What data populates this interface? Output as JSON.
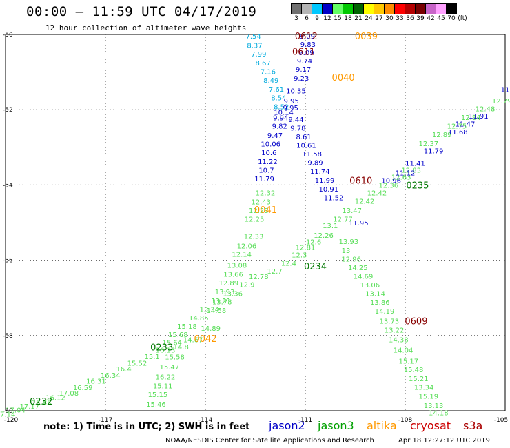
{
  "header": {
    "title": "00:00 – 11:59 UTC 04/17/2019",
    "subtitle": "12 hour collection of altimeter wave heights"
  },
  "colorbar": {
    "unit": "(ft)",
    "bins": [
      {
        "label": "3",
        "color": "#707070"
      },
      {
        "label": "6",
        "color": "#b4b4b4"
      },
      {
        "label": "9",
        "color": "#00c8ff"
      },
      {
        "label": "12",
        "color": "#0000c8"
      },
      {
        "label": "15",
        "color": "#64ff64"
      },
      {
        "label": "18",
        "color": "#00c800"
      },
      {
        "label": "21",
        "color": "#006400"
      },
      {
        "label": "24",
        "color": "#ffff00"
      },
      {
        "label": "27",
        "color": "#ffc800"
      },
      {
        "label": "30",
        "color": "#ff8c00"
      },
      {
        "label": "33",
        "color": "#ff0000"
      },
      {
        "label": "36",
        "color": "#b40000"
      },
      {
        "label": "39",
        "color": "#780000"
      },
      {
        "label": "42",
        "color": "#c864c8"
      },
      {
        "label": "45",
        "color": "#ffa0ff"
      },
      {
        "label": "70",
        "color": "#000000"
      }
    ]
  },
  "footer": {
    "note": "note: 1) Time is in UTC; 2) SWH is in feet",
    "credit": "NOAA/NESDIS Center for Satellite Applications and Research",
    "timestamp": "Apr 18 12:27:12 UTC 2019",
    "satellites": [
      {
        "name": "jason2",
        "color": "#0000c8"
      },
      {
        "name": "jason3",
        "color": "#00a000"
      },
      {
        "name": "altika",
        "color": "#ff9900"
      },
      {
        "name": "cryosat",
        "color": "#cc0000"
      },
      {
        "name": "s3a",
        "color": "#aa0000"
      }
    ]
  },
  "chart_data": {
    "type": "scatter",
    "title": "00:00 – 11:59 UTC 04/17/2019",
    "subtitle": "12 hour collection of altimeter wave heights",
    "xlabel": "",
    "ylabel": "",
    "xlim": [
      -120,
      -105
    ],
    "ylim": [
      -60,
      -50
    ],
    "xticks": [
      "-120",
      "-117",
      "-114",
      "-111",
      "-108",
      "-105"
    ],
    "yticks": [
      "-50",
      "-52",
      "-54",
      "-56",
      "-58",
      "-60"
    ],
    "grid": true,
    "point_colors": {
      "light_blue": "#00aadd",
      "dark_blue": "#0000c8",
      "light_green": "#55dd55",
      "dark_green": "#007700",
      "altika": "#ff9900",
      "cryosat": "#880000"
    },
    "time_labels": [
      {
        "text": "0612",
        "color": "cryosat",
        "lon": -110.97,
        "lat": -50.04
      },
      {
        "text": "0039",
        "color": "altika",
        "lon": -109.17,
        "lat": -50.04
      },
      {
        "text": "0611",
        "color": "cryosat",
        "lon": -111.05,
        "lat": -50.45
      },
      {
        "text": "0040",
        "color": "altika",
        "lon": -109.86,
        "lat": -51.14
      },
      {
        "text": "0610",
        "color": "cryosat",
        "lon": -109.33,
        "lat": -53.87
      },
      {
        "text": "0235",
        "color": "dark_green",
        "lon": -107.63,
        "lat": -54.0
      },
      {
        "text": "0041",
        "color": "altika",
        "lon": -112.19,
        "lat": -54.65
      },
      {
        "text": "0234",
        "color": "dark_green",
        "lon": -110.7,
        "lat": -56.15
      },
      {
        "text": "0609",
        "color": "cryosat",
        "lon": -107.67,
        "lat": -57.61
      },
      {
        "text": "0042",
        "color": "altika",
        "lon": -114.0,
        "lat": -58.08
      },
      {
        "text": "0233",
        "color": "dark_green",
        "lon": -115.31,
        "lat": -58.31
      },
      {
        "text": "0232",
        "color": "dark_green",
        "lon": -118.93,
        "lat": -59.74
      }
    ],
    "tracks": [
      {
        "name": "track-light-blue-north",
        "color": "light_blue",
        "points": [
          {
            "lon": -112.56,
            "lat": -50.04,
            "swh": 7.54
          },
          {
            "lon": -112.52,
            "lat": -50.28,
            "swh": 8.37
          },
          {
            "lon": -112.4,
            "lat": -50.51,
            "swh": 7.99
          },
          {
            "lon": -112.27,
            "lat": -50.75,
            "swh": 8.67
          },
          {
            "lon": -112.12,
            "lat": -50.98,
            "swh": 7.16
          },
          {
            "lon": -112.03,
            "lat": -51.21,
            "swh": 8.49
          },
          {
            "lon": -111.87,
            "lat": -51.45,
            "swh": 7.61
          },
          {
            "lon": -111.8,
            "lat": -51.68,
            "swh": 8.54
          },
          {
            "lon": -111.72,
            "lat": -51.91,
            "swh": 8.52
          }
        ]
      },
      {
        "name": "track-dark-blue-west",
        "color": "dark_blue",
        "points": [
          {
            "lon": -111.65,
            "lat": -52.06,
            "swh": 10.14
          },
          {
            "lon": -111.74,
            "lat": -52.21,
            "swh": 9.94
          },
          {
            "lon": -111.77,
            "lat": -52.43,
            "swh": 9.82
          },
          {
            "lon": -111.91,
            "lat": -52.67,
            "swh": 9.47
          },
          {
            "lon": -112.04,
            "lat": -52.9,
            "swh": 10.06
          },
          {
            "lon": -112.09,
            "lat": -53.13,
            "swh": 10.6
          },
          {
            "lon": -112.13,
            "lat": -53.37,
            "swh": 11.22
          },
          {
            "lon": -112.17,
            "lat": -53.6,
            "swh": 10.7
          },
          {
            "lon": -112.23,
            "lat": -53.83,
            "swh": 11.79
          }
        ]
      },
      {
        "name": "track-dark-blue-center",
        "color": "dark_blue",
        "points": [
          {
            "lon": -110.94,
            "lat": -50.04,
            "swh": 9.09
          },
          {
            "lon": -110.92,
            "lat": -50.26,
            "swh": 9.83
          },
          {
            "lon": -110.97,
            "lat": -50.48,
            "swh": 9.09
          },
          {
            "lon": -111.02,
            "lat": -50.7,
            "swh": 9.74
          },
          {
            "lon": -111.06,
            "lat": -50.92,
            "swh": 9.17
          },
          {
            "lon": -111.12,
            "lat": -51.15,
            "swh": 9.23
          },
          {
            "lon": -111.28,
            "lat": -51.49,
            "swh": 10.35
          },
          {
            "lon": -111.42,
            "lat": -51.76,
            "swh": 9.95
          },
          {
            "lon": -111.44,
            "lat": -51.94,
            "swh": 9.95
          },
          {
            "lon": -111.28,
            "lat": -52.25,
            "swh": 9.44
          },
          {
            "lon": -111.22,
            "lat": -52.48,
            "swh": 9.78
          },
          {
            "lon": -111.05,
            "lat": -52.71,
            "swh": 8.61
          },
          {
            "lon": -110.97,
            "lat": -52.94,
            "swh": 10.61
          },
          {
            "lon": -110.8,
            "lat": -53.17,
            "swh": 11.58
          },
          {
            "lon": -110.7,
            "lat": -53.4,
            "swh": 9.89
          },
          {
            "lon": -110.56,
            "lat": -53.63,
            "swh": 11.74
          },
          {
            "lon": -110.42,
            "lat": -53.86,
            "swh": 11.99
          },
          {
            "lon": -110.3,
            "lat": -54.1,
            "swh": 10.91
          },
          {
            "lon": -110.15,
            "lat": -54.33,
            "swh": 11.52
          }
        ]
      },
      {
        "name": "track-dark-blue-south",
        "color": "dark_blue",
        "points": [
          {
            "lon": -109.4,
            "lat": -55.0,
            "swh": 11.95
          }
        ]
      },
      {
        "name": "track-light-green-west",
        "color": "light_green",
        "points": [
          {
            "lon": -112.2,
            "lat": -54.2,
            "swh": 12.32
          },
          {
            "lon": -112.33,
            "lat": -54.44,
            "swh": 12.43
          },
          {
            "lon": -112.4,
            "lat": -54.67,
            "swh": 12.28
          },
          {
            "lon": -112.53,
            "lat": -54.9,
            "swh": 12.25
          },
          {
            "lon": -112.55,
            "lat": -55.36,
            "swh": 12.33
          },
          {
            "lon": -112.76,
            "lat": -55.61,
            "swh": 12.06
          },
          {
            "lon": -112.91,
            "lat": -55.83,
            "swh": 12.14
          },
          {
            "lon": -113.05,
            "lat": -56.13,
            "swh": 13.08
          },
          {
            "lon": -113.16,
            "lat": -56.36,
            "swh": 13.66
          },
          {
            "lon": -113.3,
            "lat": -56.59,
            "swh": 12.89
          },
          {
            "lon": -113.42,
            "lat": -56.83,
            "swh": 13.93
          },
          {
            "lon": -113.53,
            "lat": -57.07,
            "swh": 13.21
          },
          {
            "lon": -113.67,
            "lat": -57.33,
            "swh": 14.58
          },
          {
            "lon": -113.84,
            "lat": -57.8,
            "swh": 14.89
          },
          {
            "lon": -114.37,
            "lat": -58.1,
            "swh": 14.67
          },
          {
            "lon": -114.73,
            "lat": -58.3,
            "swh": 14.8
          },
          {
            "lon": -114.92,
            "lat": -58.56,
            "swh": 15.58
          },
          {
            "lon": -115.08,
            "lat": -58.83,
            "swh": 15.47
          },
          {
            "lon": -115.2,
            "lat": -59.09,
            "swh": 16.22
          },
          {
            "lon": -115.28,
            "lat": -59.33,
            "swh": 15.11
          },
          {
            "lon": -115.43,
            "lat": -59.56,
            "swh": 15.15
          },
          {
            "lon": -115.48,
            "lat": -59.82,
            "swh": 15.46
          }
        ]
      },
      {
        "name": "track-light-green-northeast",
        "color": "light_green",
        "points": [
          {
            "lon": -105.1,
            "lat": -51.76,
            "swh": 12.79
          },
          {
            "lon": -105.6,
            "lat": -51.97,
            "swh": 12.48
          },
          {
            "lon": -106.03,
            "lat": -52.2,
            "swh": 12.84
          },
          {
            "lon": -106.45,
            "lat": -52.43,
            "swh": 12.75
          },
          {
            "lon": -106.9,
            "lat": -52.66,
            "swh": 12.89
          },
          {
            "lon": -107.3,
            "lat": -52.89,
            "swh": 12.37
          },
          {
            "lon": -107.82,
            "lat": -53.6,
            "swh": 12.83
          },
          {
            "lon": -108.12,
            "lat": -53.78,
            "swh": 12.63
          },
          {
            "lon": -108.5,
            "lat": -54.0,
            "swh": 12.36
          },
          {
            "lon": -108.85,
            "lat": -54.2,
            "swh": 12.42
          },
          {
            "lon": -109.22,
            "lat": -54.42,
            "swh": 12.42
          },
          {
            "lon": -109.6,
            "lat": -54.67,
            "swh": 13.47
          },
          {
            "lon": -109.87,
            "lat": -54.9,
            "swh": 12.77
          },
          {
            "lon": -110.25,
            "lat": -55.07,
            "swh": 13.1
          },
          {
            "lon": -110.45,
            "lat": -55.33,
            "swh": 12.26
          },
          {
            "lon": -110.75,
            "lat": -55.5,
            "swh": 12.6
          },
          {
            "lon": -111.0,
            "lat": -55.65,
            "swh": 12.81
          },
          {
            "lon": -111.18,
            "lat": -55.85,
            "swh": 12.3
          },
          {
            "lon": -111.5,
            "lat": -56.07,
            "swh": 12.4
          },
          {
            "lon": -111.92,
            "lat": -56.28,
            "swh": 12.7
          },
          {
            "lon": -112.4,
            "lat": -56.43,
            "swh": 12.78
          },
          {
            "lon": -112.75,
            "lat": -56.64,
            "swh": 12.9
          },
          {
            "lon": -113.18,
            "lat": -56.88,
            "swh": 13.36
          },
          {
            "lon": -113.5,
            "lat": -57.1,
            "swh": 13.78
          },
          {
            "lon": -113.88,
            "lat": -57.3,
            "swh": 13.34
          },
          {
            "lon": -114.2,
            "lat": -57.53,
            "swh": 14.85
          },
          {
            "lon": -114.55,
            "lat": -57.75,
            "swh": 15.18
          },
          {
            "lon": -114.82,
            "lat": -57.97,
            "swh": 15.68
          },
          {
            "lon": -115.0,
            "lat": -58.18,
            "swh": 15.64
          },
          {
            "lon": -115.2,
            "lat": -58.38,
            "swh": 16.13
          },
          {
            "lon": -115.6,
            "lat": -58.55,
            "swh": 15.1
          },
          {
            "lon": -116.05,
            "lat": -58.73,
            "swh": 15.52
          },
          {
            "lon": -116.45,
            "lat": -58.88,
            "swh": 16.4
          },
          {
            "lon": -116.85,
            "lat": -59.05,
            "swh": 16.34
          },
          {
            "lon": -117.28,
            "lat": -59.2,
            "swh": 16.31
          },
          {
            "lon": -117.68,
            "lat": -59.38,
            "swh": 16.59
          },
          {
            "lon": -118.1,
            "lat": -59.52,
            "swh": 17.08
          },
          {
            "lon": -118.5,
            "lat": -59.64,
            "swh": 16.12
          },
          {
            "lon": -118.92,
            "lat": -59.77,
            "swh": 15.85
          },
          {
            "lon": -119.28,
            "lat": -59.87,
            "swh": 17.17
          },
          {
            "lon": -119.7,
            "lat": -59.97,
            "swh": 17.04
          },
          {
            "lon": -120.0,
            "lat": -60.08,
            "swh": 17.14
          }
        ]
      },
      {
        "name": "track-light-green-east",
        "color": "light_green",
        "points": [
          {
            "lon": -109.7,
            "lat": -55.49,
            "swh": 13.93
          },
          {
            "lon": -109.78,
            "lat": -55.73,
            "swh": 13.0
          },
          {
            "lon": -109.62,
            "lat": -55.96,
            "swh": 12.96
          },
          {
            "lon": -109.42,
            "lat": -56.19,
            "swh": 14.25
          },
          {
            "lon": -109.26,
            "lat": -56.42,
            "swh": 14.69
          },
          {
            "lon": -109.06,
            "lat": -56.65,
            "swh": 13.06
          },
          {
            "lon": -108.9,
            "lat": -56.88,
            "swh": 13.14
          },
          {
            "lon": -108.76,
            "lat": -57.11,
            "swh": 13.86
          },
          {
            "lon": -108.62,
            "lat": -57.34,
            "swh": 14.19
          },
          {
            "lon": -108.48,
            "lat": -57.61,
            "swh": 13.73
          },
          {
            "lon": -108.33,
            "lat": -57.85,
            "swh": 13.22
          },
          {
            "lon": -108.2,
            "lat": -58.1,
            "swh": 14.38
          },
          {
            "lon": -108.06,
            "lat": -58.38,
            "swh": 14.04
          },
          {
            "lon": -107.9,
            "lat": -58.67,
            "swh": 15.17
          },
          {
            "lon": -107.75,
            "lat": -58.9,
            "swh": 15.48
          },
          {
            "lon": -107.6,
            "lat": -59.14,
            "swh": 15.21
          },
          {
            "lon": -107.44,
            "lat": -59.37,
            "swh": 13.34
          },
          {
            "lon": -107.3,
            "lat": -59.61,
            "swh": 15.19
          },
          {
            "lon": -107.15,
            "lat": -59.85,
            "swh": 13.13
          },
          {
            "lon": -107.0,
            "lat": -60.05,
            "swh": 14.18
          }
        ]
      },
      {
        "name": "track-dark-blue-northeast",
        "color": "dark_blue",
        "points": [
          {
            "lon": -105.0,
            "lat": -51.46,
            "swh": 11
          },
          {
            "lon": -105.8,
            "lat": -52.16,
            "swh": 11.91
          },
          {
            "lon": -106.2,
            "lat": -52.37,
            "swh": 11.47
          },
          {
            "lon": -106.42,
            "lat": -52.58,
            "swh": 11.68
          },
          {
            "lon": -107.15,
            "lat": -53.09,
            "swh": 11.79
          },
          {
            "lon": -107.7,
            "lat": -53.42,
            "swh": 11.41
          },
          {
            "lon": -108.0,
            "lat": -53.67,
            "swh": 11.12
          },
          {
            "lon": -108.42,
            "lat": -53.87,
            "swh": 10.96
          }
        ]
      }
    ]
  }
}
